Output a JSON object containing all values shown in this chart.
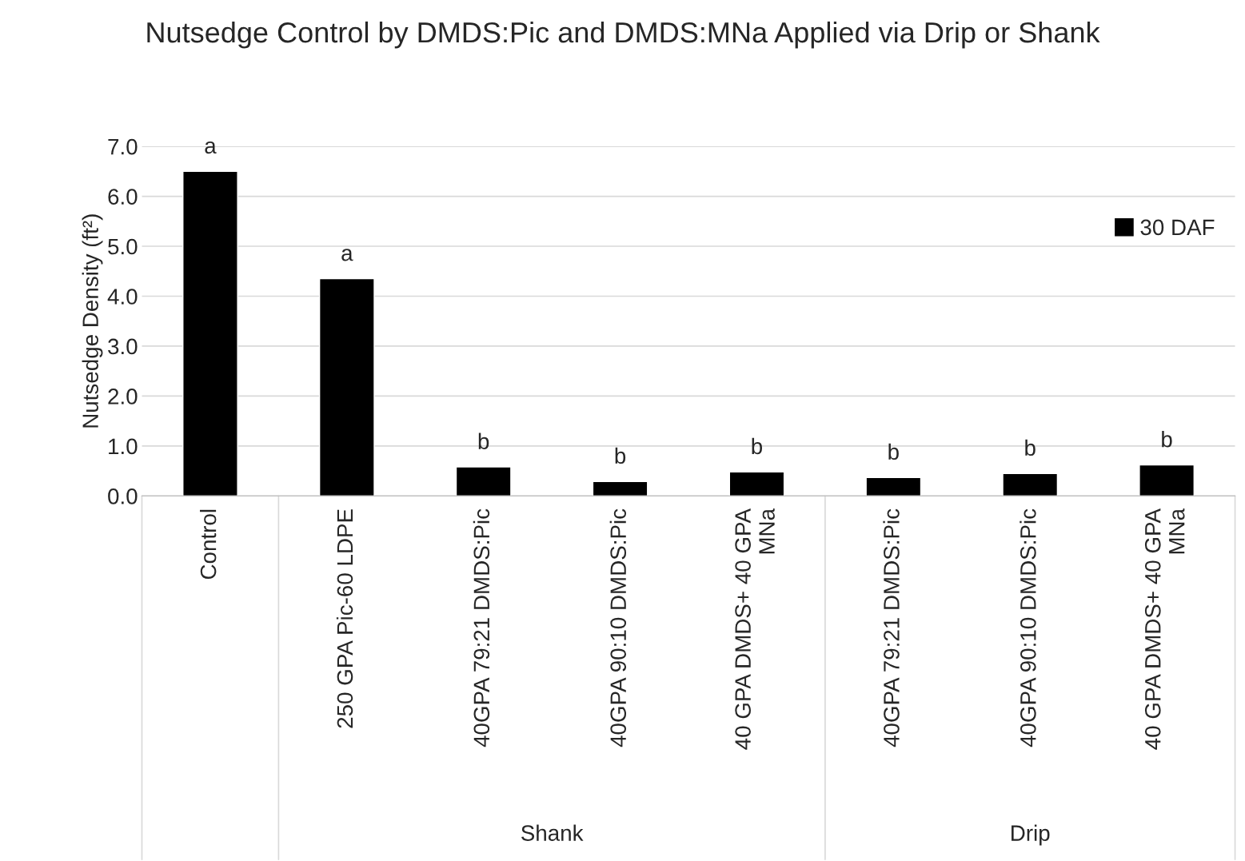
{
  "chart_data": {
    "type": "bar",
    "title": "Nutsedge Control by DMDS:Pic and DMDS:MNa Applied via Drip or Shank",
    "ylabel": "Nutsedge Density (ft²)",
    "categories": [
      "Control",
      "250 GPA Pic-60 LDPE",
      "40GPA 79:21 DMDS:Pic",
      "40GPA 90:10 DMDS:Pic",
      "40 GPA DMDS+ 40 GPA\nMNa",
      "40GPA 79:21 DMDS:Pic",
      "40GPA 90:10 DMDS:Pic",
      "40 GPA DMDS+ 40 GPA\nMNa"
    ],
    "series": [
      {
        "name": "30 DAF",
        "color": "#000000",
        "values": [
          6.5,
          4.35,
          0.58,
          0.29,
          0.48,
          0.37,
          0.45,
          0.62
        ]
      }
    ],
    "ylim": [
      0,
      7
    ],
    "yticks": [
      {
        "value": 0,
        "label": "0.0"
      },
      {
        "value": 1,
        "label": "1.0"
      },
      {
        "value": 2,
        "label": "2.0"
      },
      {
        "value": 3,
        "label": "3.0"
      },
      {
        "value": 4,
        "label": "4.0"
      },
      {
        "value": 5,
        "label": "5.0"
      },
      {
        "value": 6,
        "label": "6.0"
      },
      {
        "value": 7,
        "label": "7.0"
      }
    ],
    "grid": "y",
    "legend": "top right",
    "annotations": [
      "a",
      "a",
      "b",
      "b",
      "b",
      "b",
      "b",
      "b",
      "Shank",
      "Drip"
    ]
  }
}
